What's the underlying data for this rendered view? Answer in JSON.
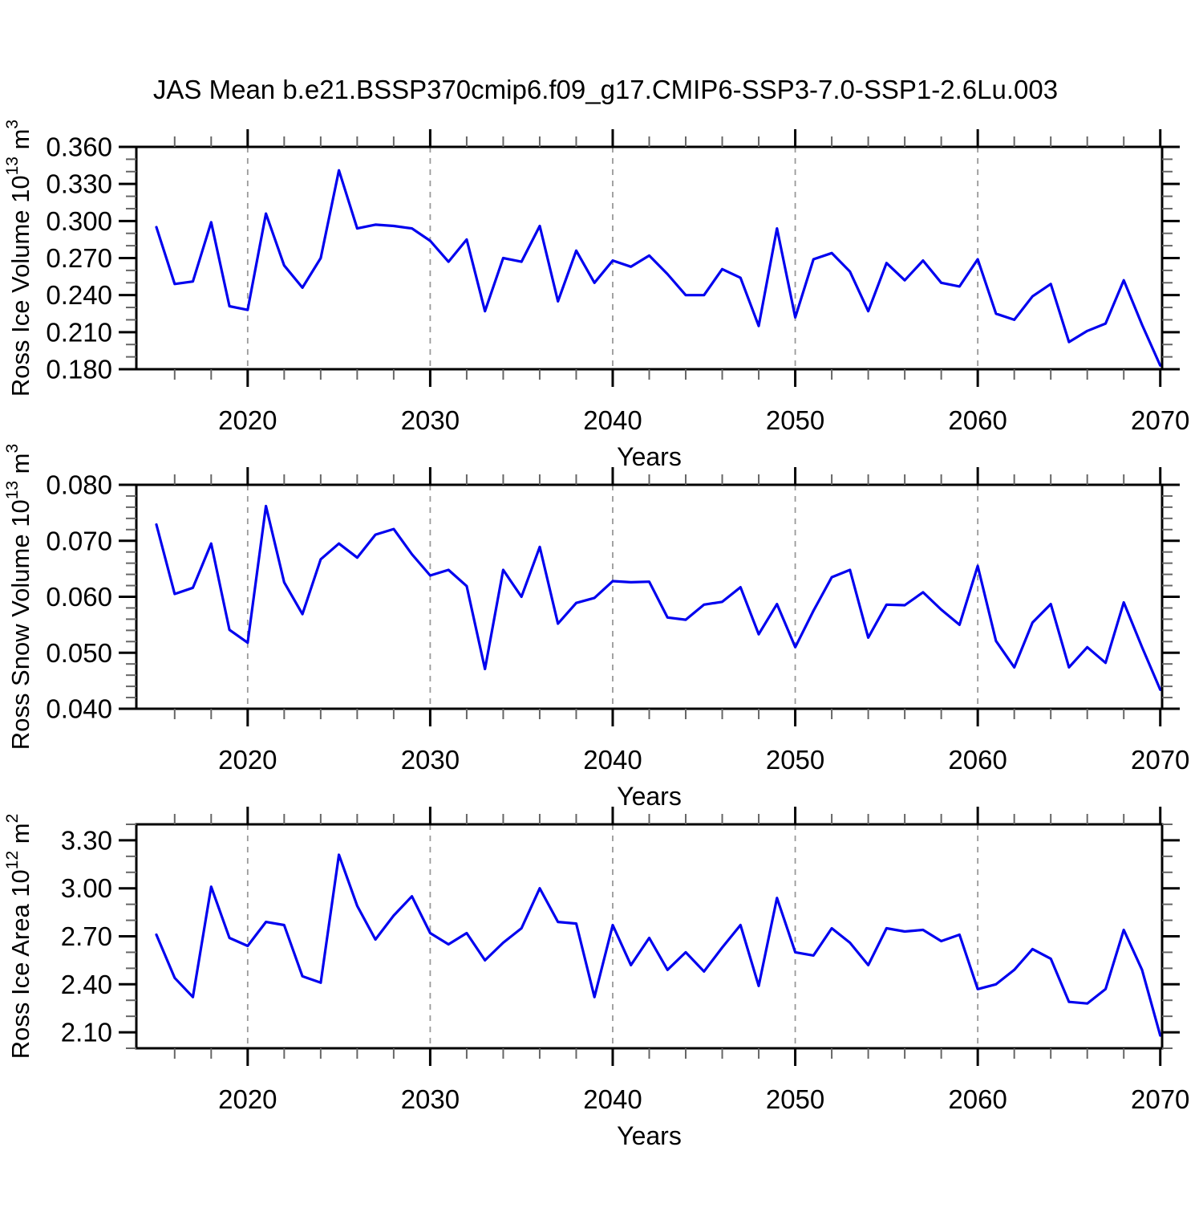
{
  "title": "JAS Mean b.e21.BSSP370cmip6.f09_g17.CMIP6-SSP3-7.0-SSP1-2.6Lu.003",
  "style": {
    "line_color": "#0000EE",
    "grid_color": "#999999",
    "axis_color": "#000000",
    "minor_tick_color": "#666666",
    "background": "#FFFFFF"
  },
  "chart_data": [
    {
      "type": "line",
      "name": "ross-ice-volume",
      "ylabel": {
        "base": "Ross Ice Volume 10",
        "exp": "13",
        "unit": "m",
        "unit_exp": "3"
      },
      "xlabel": "Years",
      "xlim": [
        2013.9,
        2070.1
      ],
      "ylim": [
        0.18,
        0.36
      ],
      "yticks": [
        0.18,
        0.21,
        0.24,
        0.27,
        0.3,
        0.33,
        0.36
      ],
      "ytick_labels": [
        "0.180",
        "0.210",
        "0.240",
        "0.270",
        "0.300",
        "0.330",
        "0.360"
      ],
      "y_minor_step": 0.01,
      "xticks": [
        2020,
        2030,
        2040,
        2050,
        2060,
        2070
      ],
      "xtick_labels": [
        "2020",
        "2030",
        "2040",
        "2050",
        "2060",
        "2070"
      ],
      "x_minor_step": 2,
      "grid_x": [
        2020,
        2030,
        2040,
        2050,
        2060
      ],
      "x": [
        2015,
        2016,
        2017,
        2018,
        2019,
        2020,
        2021,
        2022,
        2023,
        2024,
        2025,
        2026,
        2027,
        2028,
        2029,
        2030,
        2031,
        2032,
        2033,
        2034,
        2035,
        2036,
        2037,
        2038,
        2039,
        2040,
        2041,
        2042,
        2043,
        2044,
        2045,
        2046,
        2047,
        2048,
        2049,
        2050,
        2051,
        2052,
        2053,
        2054,
        2055,
        2056,
        2057,
        2058,
        2059,
        2060,
        2061,
        2062,
        2063,
        2064,
        2065,
        2066,
        2067,
        2068,
        2069,
        2070
      ],
      "values": [
        0.295,
        0.249,
        0.251,
        0.299,
        0.231,
        0.228,
        0.306,
        0.264,
        0.246,
        0.27,
        0.341,
        0.294,
        0.297,
        0.296,
        0.294,
        0.284,
        0.267,
        0.285,
        0.227,
        0.27,
        0.267,
        0.296,
        0.235,
        0.276,
        0.25,
        0.268,
        0.263,
        0.272,
        0.257,
        0.24,
        0.24,
        0.261,
        0.254,
        0.215,
        0.294,
        0.222,
        0.269,
        0.274,
        0.259,
        0.227,
        0.266,
        0.252,
        0.268,
        0.25,
        0.247,
        0.269,
        0.225,
        0.22,
        0.239,
        0.249,
        0.202,
        0.211,
        0.217,
        0.252,
        0.216,
        0.183
      ]
    },
    {
      "type": "line",
      "name": "ross-snow-volume",
      "ylabel": {
        "base": "Ross Snow Volume 10",
        "exp": "13",
        "unit": "m",
        "unit_exp": "3"
      },
      "xlabel": "Years",
      "xlim": [
        2013.9,
        2070.1
      ],
      "ylim": [
        0.04,
        0.08
      ],
      "yticks": [
        0.04,
        0.05,
        0.06,
        0.07,
        0.08
      ],
      "ytick_labels": [
        "0.040",
        "0.050",
        "0.060",
        "0.070",
        "0.080"
      ],
      "y_minor_step": 0.002,
      "xticks": [
        2020,
        2030,
        2040,
        2050,
        2060,
        2070
      ],
      "xtick_labels": [
        "2020",
        "2030",
        "2040",
        "2050",
        "2060",
        "2070"
      ],
      "x_minor_step": 2,
      "grid_x": [
        2020,
        2030,
        2040,
        2050,
        2060
      ],
      "x": [
        2015,
        2016,
        2017,
        2018,
        2019,
        2020,
        2021,
        2022,
        2023,
        2024,
        2025,
        2026,
        2027,
        2028,
        2029,
        2030,
        2031,
        2032,
        2033,
        2034,
        2035,
        2036,
        2037,
        2038,
        2039,
        2040,
        2041,
        2042,
        2043,
        2044,
        2045,
        2046,
        2047,
        2048,
        2049,
        2050,
        2051,
        2052,
        2053,
        2054,
        2055,
        2056,
        2057,
        2058,
        2059,
        2060,
        2061,
        2062,
        2063,
        2064,
        2065,
        2066,
        2067,
        2068,
        2069,
        2070
      ],
      "values": [
        0.0729,
        0.0605,
        0.0616,
        0.0695,
        0.0541,
        0.0518,
        0.0762,
        0.0626,
        0.0569,
        0.0667,
        0.0695,
        0.067,
        0.0711,
        0.0721,
        0.0676,
        0.0638,
        0.0648,
        0.0619,
        0.0471,
        0.0648,
        0.06,
        0.0689,
        0.0552,
        0.0589,
        0.0598,
        0.0628,
        0.0626,
        0.0627,
        0.0563,
        0.0559,
        0.0586,
        0.0591,
        0.0617,
        0.0533,
        0.0587,
        0.051,
        0.0575,
        0.0635,
        0.0648,
        0.0527,
        0.0586,
        0.0585,
        0.0608,
        0.0577,
        0.055,
        0.0655,
        0.0521,
        0.0474,
        0.0554,
        0.0587,
        0.0474,
        0.051,
        0.0482,
        0.059,
        0.051,
        0.0434
      ]
    },
    {
      "type": "line",
      "name": "ross-ice-area",
      "ylabel": {
        "base": "Ross Ice Area 10",
        "exp": "12",
        "unit": "m",
        "unit_exp": "2"
      },
      "xlabel": "Years",
      "xlim": [
        2013.9,
        2070.1
      ],
      "ylim": [
        2.0,
        3.4
      ],
      "yticks": [
        2.1,
        2.4,
        2.7,
        3.0,
        3.3
      ],
      "ytick_labels": [
        "2.10",
        "2.40",
        "2.70",
        "3.00",
        "3.30"
      ],
      "y_minor_step": 0.1,
      "xticks": [
        2020,
        2030,
        2040,
        2050,
        2060,
        2070
      ],
      "xtick_labels": [
        "2020",
        "2030",
        "2040",
        "2050",
        "2060",
        "2070"
      ],
      "x_minor_step": 2,
      "grid_x": [
        2020,
        2030,
        2040,
        2050,
        2060
      ],
      "x": [
        2015,
        2016,
        2017,
        2018,
        2019,
        2020,
        2021,
        2022,
        2023,
        2024,
        2025,
        2026,
        2027,
        2028,
        2029,
        2030,
        2031,
        2032,
        2033,
        2034,
        2035,
        2036,
        2037,
        2038,
        2039,
        2040,
        2041,
        2042,
        2043,
        2044,
        2045,
        2046,
        2047,
        2048,
        2049,
        2050,
        2051,
        2052,
        2053,
        2054,
        2055,
        2056,
        2057,
        2058,
        2059,
        2060,
        2061,
        2062,
        2063,
        2064,
        2065,
        2066,
        2067,
        2068,
        2069,
        2070
      ],
      "values": [
        2.71,
        2.44,
        2.32,
        3.01,
        2.69,
        2.64,
        2.79,
        2.77,
        2.45,
        2.41,
        3.21,
        2.89,
        2.68,
        2.83,
        2.95,
        2.72,
        2.65,
        2.72,
        2.55,
        2.66,
        2.75,
        3.0,
        2.79,
        2.78,
        2.32,
        2.77,
        2.52,
        2.69,
        2.49,
        2.6,
        2.48,
        2.63,
        2.77,
        2.39,
        2.94,
        2.6,
        2.58,
        2.75,
        2.66,
        2.52,
        2.75,
        2.73,
        2.74,
        2.67,
        2.71,
        2.37,
        2.4,
        2.49,
        2.62,
        2.56,
        2.29,
        2.28,
        2.37,
        2.74,
        2.49,
        2.08
      ]
    }
  ]
}
